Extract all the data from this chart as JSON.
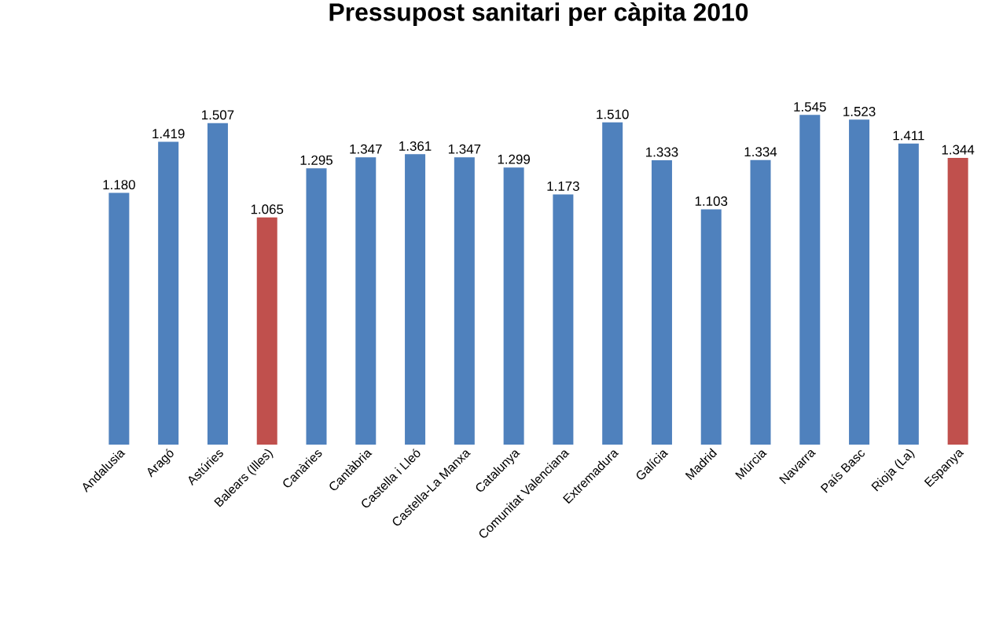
{
  "chart_data": {
    "type": "bar",
    "title": "Pressupost sanitari per càpita 2010",
    "categories": [
      "Andalusia",
      "Aragó",
      "Astúries",
      "Balears (Illes)",
      "Canàries",
      "Cantàbria",
      "Castella i Lleó",
      "Castella-La Manxa",
      "Catalunya",
      "Comunitat Valenciana",
      "Extremadura",
      "Galícia",
      "Madrid",
      "Múrcia",
      "Navarra",
      "País Basc",
      "Rioja (La)",
      "Espanya"
    ],
    "values": [
      1180,
      1419,
      1507,
      1065,
      1295,
      1347,
      1361,
      1347,
      1299,
      1173,
      1510,
      1333,
      1103,
      1334,
      1545,
      1523,
      1411,
      1344
    ],
    "value_labels": [
      "1.180",
      "1.419",
      "1.507",
      "1.065",
      "1.295",
      "1.347",
      "1.361",
      "1.347",
      "1.299",
      "1.173",
      "1.510",
      "1.333",
      "1.103",
      "1.334",
      "1.545",
      "1.523",
      "1.411",
      "1.344"
    ],
    "colors": [
      "#4f81bd",
      "#4f81bd",
      "#4f81bd",
      "#c0504d",
      "#4f81bd",
      "#4f81bd",
      "#4f81bd",
      "#4f81bd",
      "#4f81bd",
      "#4f81bd",
      "#4f81bd",
      "#4f81bd",
      "#4f81bd",
      "#4f81bd",
      "#4f81bd",
      "#4f81bd",
      "#4f81bd",
      "#c0504d"
    ]
  }
}
